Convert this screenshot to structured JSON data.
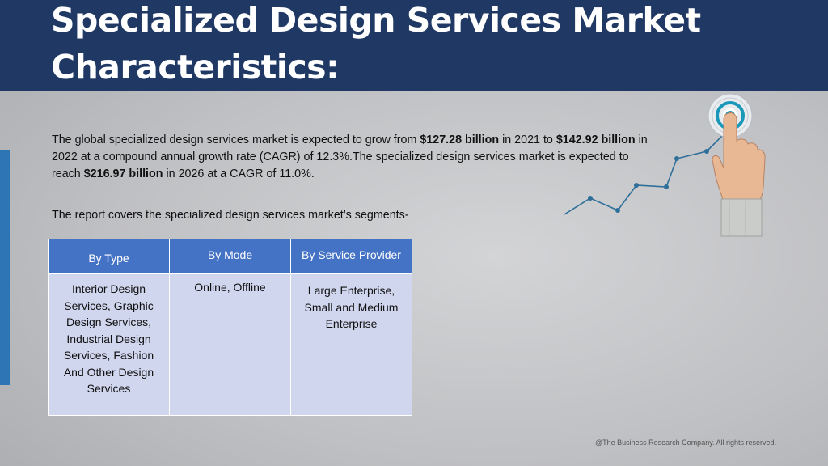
{
  "slide": {
    "title": "Specialized Design Services Market Characteristics:",
    "intro": {
      "t1": "The global specialized design services market is expected to grow from ",
      "b1": "$127.28 billion",
      "t2": " in 2021 to ",
      "b2": "$142.92 billion",
      "t3": " in 2022 at a compound annual growth rate (CAGR) of 12.3%.The specialized design services market is expected to reach ",
      "b3": "$216.97 billion",
      "t4": " in 2026 at a CAGR of 11.0%."
    },
    "segments_intro": "The report covers the specialized design services market’s segments-",
    "table": {
      "headers": [
        "By Type",
        "By Mode",
        "By Service Provider"
      ],
      "cells": [
        "Interior Design Services, Graphic Design Services, Industrial Design Services, Fashion And Other Design Services",
        "Online, Offline",
        "Large Enterprise, Small and Medium Enterprise"
      ]
    },
    "footer": "@The Business Research Company. All rights reserved."
  },
  "colors": {
    "header_bg": "#1f3864",
    "table_header": "#4472c4",
    "table_body": "#d0d6ee",
    "accent": "#2e75b6",
    "growth_line": "#2e6f9a"
  },
  "icons": [
    "growth-line-icon",
    "target-icon",
    "pointing-hand-icon"
  ]
}
